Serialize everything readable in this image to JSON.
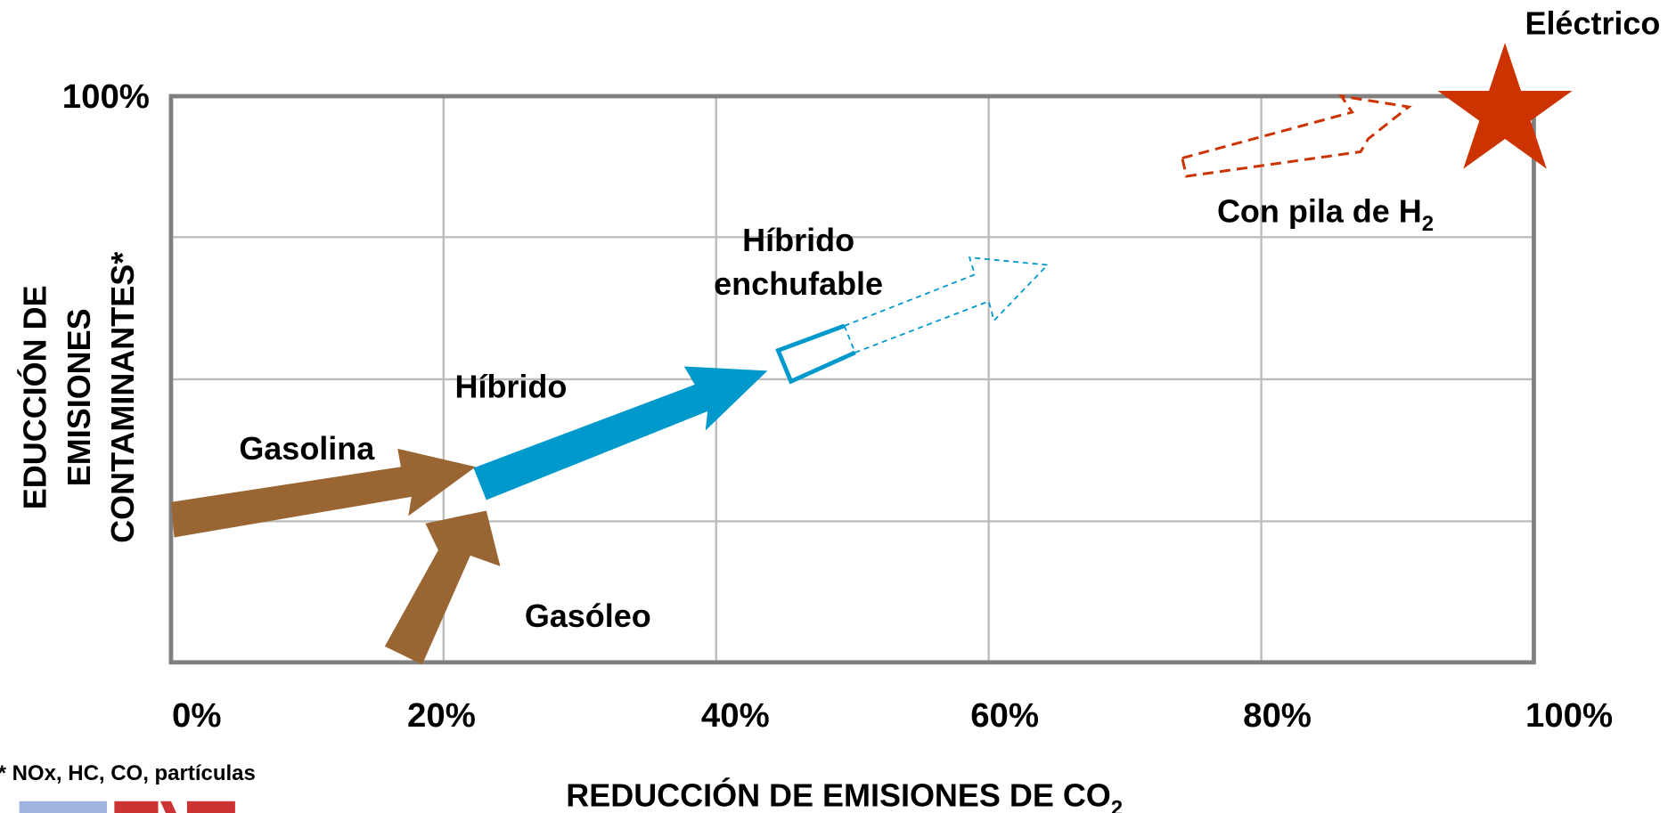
{
  "diagram": {
    "labels": {
      "electrico": "Eléctrico",
      "pila": {
        "text": "Con pila de H",
        "subscript": "2"
      },
      "hibrido_enchufable": [
        "Híbrido",
        "enchufable"
      ],
      "hibrido": "Híbrido",
      "gasolina": "Gasolina",
      "gasoleo": "Gasóleo"
    },
    "y_axis": {
      "label": [
        "EDUCCIÓN DE",
        "EMISIONES",
        "CONTAMINANTES*"
      ],
      "top_tick": "100%"
    },
    "x_axis": {
      "label": {
        "text": "REDUCCIÓN DE EMISIONES DE CO",
        "subscript": "2"
      },
      "ticks": [
        "0%",
        "20%",
        "40%",
        "60%",
        "80%",
        "100%"
      ]
    },
    "footnote": "* NOx, HC, CO, partículas"
  }
}
